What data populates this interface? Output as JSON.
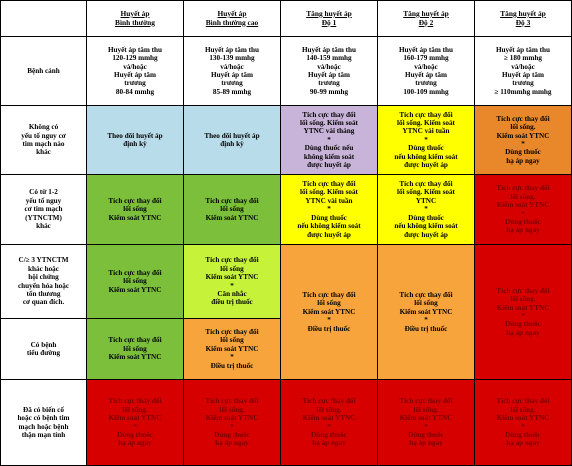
{
  "colors": {
    "blue": "#b9dcea",
    "green": "#7bbf3b",
    "lime": "#c6f23a",
    "purple": "#c8b4d8",
    "yellow": "#ffff00",
    "orange": "#f7a43c",
    "dark_orange": "#e8882a",
    "red": "#d70000",
    "white": "#ffffff"
  },
  "header": {
    "col0": "",
    "col1": "Huyết áp\nBình thường",
    "col2": "Huyết áp\nBình thường cao",
    "col3": "Tăng huyết áp\nĐộ 1",
    "col4": "Tăng huyết áp\nĐộ 2",
    "col5": "Tăng huyết áp\nĐộ 3"
  },
  "criteria": {
    "label": "Bệnh cảnh",
    "col1": "Huyết áp tâm thu\n120-129 mmhg\nvà/hoặc\nHuyết áp tâm\ntrương\n80-84 mmhg",
    "col2": "Huyết áp tâm thu\n130-139 mmhg\nvà/hoặc\nHuyết áp tâm\ntrương\n85-89 mmhg",
    "col3": "Huyết áp tâm thu\n140-159 mmhg\nvà/hoặc\nHuyết áp tâm\ntrương\n90-99 mmhg",
    "col4": "Huyết áp tâm thu\n160-179 mmhg\nvà/hoặc\nHuyết áp tâm\ntrương\n100-109 mmhg",
    "col5": "Huyết áp tâm thu\n≥ 180 mmhg\nvà/hoặc\nHuyết áp tâm\ntrương\n≥ 110mmhg mmhg"
  },
  "rows": {
    "r1": {
      "label": "Không có\nyếu tố nguy cơ\ntim mạch nào\nkhác",
      "col1": "Theo dõi huyết áp\nđịnh kỳ",
      "col2": "Theo dõi huyết áp\nđịnh kỳ",
      "col3": "Tích cực thay đổi\nlối sống. Kiểm soát\nYTNC vài tháng\n*\nDùng thuốc nếu\nkhông kiểm soát\nđược huyết áp",
      "col4": "Tích cực thay đổi\nlối sống. Kiểm soát\nYTNC vài tuần\n*\nDùng thuốc\nnếu không kiểm soát\nđược huyết áp",
      "col5": "Tích cực thay đổi\nlối sống.\nKiểm soát YTNC\n*\nDùng thuốc\nhạ áp ngay"
    },
    "r2": {
      "label": "Có từ 1-2\nyếu tố nguy\ncơ tim mạch\n(YTNCTM)\nkhác",
      "col1": "Tích cực thay đổi\nlối sống\nKiểm soát YTNC",
      "col2": "Tích cực thay đổi\nlối sống\nKiểm soát YTNC",
      "col3": "Tích cực thay đổi\nlối sống. Kiểm soát\nYTNC vài tuần\n*\nDùng thuốc\nnếu không kiểm soát\nđược huyết áp",
      "col4": "Tích cực thay đổi\nlối sống. Kiểm soát\nYTNC\n*\nDùng thuốc\nnếu không kiểm soát\nđược huyết áp",
      "col5": "Tích cực thay đổi\nlối sống.\nKiểm soát YTNC\n*\nDùng thuốc\nhạ áp ngay"
    },
    "r3": {
      "label": "C/≥ 3 YTNCTM\nkhác hoặc\nhội chứng\nchuyển hóa hoặc\ntổn thương\ncơ quan đích.",
      "col1": "Tích cực thay đổi\nlối sống\nKiểm soát YTNC",
      "col2": "Tích cực thay đổi\nlối sống\nKiểm soát YTNC\n*\nCân nhắc\nđiều trị thuốc"
    },
    "r4": {
      "label": "Có bệnh\ntiểu đường",
      "col1": "Tích cực thay đổi\nlối sống\nKiểm soát YTNC",
      "col2": "Tích cực thay đổi\nlối sống\nKiểm soát YTNC\n*\nĐiều trị thuốc"
    },
    "r34": {
      "col3": "Tích cực thay đổi\nlối sống\nKiểm soát YTNC\n*\nĐiều trị thuốc",
      "col4": "Tích cực thay đổi\nlối sống\nKiểm soát YTNC\n*\nĐiều trị thuốc",
      "col5": "Tích cực thay đổi\nlối sống.\nKiểm soát YTNC\n*\nDùng thuốc\nhạ áp ngay"
    },
    "r5": {
      "label": "Đã có biến cố\nhoặc có bệnh tim\nmạch hoặc bệnh\nthận mạn tính",
      "col1": "Tích cực thay đổi\nlối sống.\nKiểm soát YTNC\n*\nDùng thuốc\nhạ áp ngay",
      "col2": "Tích cực thay đổi\nlối sống.\nKiểm soát YTNC\n*\nDùng thuốc\nhạ áp ngay",
      "col3": "Tích cực thay đổi\nlối sống.\nKiểm soát YTNC\n*\nDùng thuốc\nhạ áp ngay",
      "col4": "Tích cực thay đổi\nlối sống.\nKiểm soát YTNC\n*\nDùng thuốc\nhạ áp ngay",
      "col5": "Tích cực thay đổi\nlối sống.\nKiểm soát YTNC\n*\nDùng thuốc\nhạ áp ngay"
    }
  }
}
